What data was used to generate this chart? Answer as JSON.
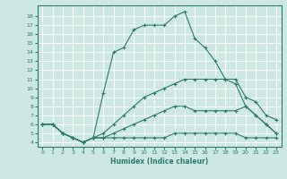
{
  "xlabel": "Humidex (Indice chaleur)",
  "ylabel": "",
  "bg_color": "#cde8e2",
  "grid_color": "#ffffff",
  "line_color": "#2d7a6e",
  "xlim": [
    -0.5,
    23.5
  ],
  "ylim": [
    3.5,
    19.2
  ],
  "xticks": [
    0,
    1,
    2,
    3,
    4,
    5,
    6,
    7,
    8,
    9,
    10,
    11,
    12,
    13,
    14,
    15,
    16,
    17,
    18,
    19,
    20,
    21,
    22,
    23
  ],
  "yticks": [
    4,
    5,
    6,
    7,
    8,
    9,
    10,
    11,
    12,
    13,
    14,
    15,
    16,
    17,
    18
  ],
  "lines": [
    {
      "x": [
        0,
        1,
        2,
        3,
        4,
        5,
        6,
        7,
        8,
        9,
        10,
        11,
        12,
        13,
        14,
        15,
        16,
        17,
        18,
        19,
        20,
        21,
        22,
        23
      ],
      "y": [
        6,
        6,
        5,
        4.5,
        4,
        4.5,
        9.5,
        14,
        14.5,
        16.5,
        17,
        17,
        17,
        18,
        18.5,
        15.5,
        14.5,
        13,
        11,
        10.5,
        8,
        7,
        6,
        5
      ]
    },
    {
      "x": [
        0,
        1,
        2,
        3,
        4,
        5,
        6,
        7,
        8,
        9,
        10,
        11,
        12,
        13,
        14,
        15,
        16,
        17,
        18,
        19,
        20,
        21,
        22,
        23
      ],
      "y": [
        6,
        6,
        5,
        4.5,
        4,
        4.5,
        5,
        6,
        7,
        8,
        9,
        9.5,
        10,
        10.5,
        11,
        11,
        11,
        11,
        11,
        11,
        9,
        8.5,
        7,
        6.5
      ]
    },
    {
      "x": [
        0,
        1,
        2,
        3,
        4,
        5,
        6,
        7,
        8,
        9,
        10,
        11,
        12,
        13,
        14,
        15,
        16,
        17,
        18,
        19,
        20,
        21,
        22,
        23
      ],
      "y": [
        6,
        6,
        5,
        4.5,
        4,
        4.5,
        4.5,
        5,
        5.5,
        6,
        6.5,
        7,
        7.5,
        8,
        8,
        7.5,
        7.5,
        7.5,
        7.5,
        7.5,
        8,
        7,
        6,
        5
      ]
    },
    {
      "x": [
        0,
        1,
        2,
        3,
        4,
        5,
        6,
        7,
        8,
        9,
        10,
        11,
        12,
        13,
        14,
        15,
        16,
        17,
        18,
        19,
        20,
        21,
        22,
        23
      ],
      "y": [
        6,
        6,
        5,
        4.5,
        4,
        4.5,
        4.5,
        4.5,
        4.5,
        4.5,
        4.5,
        4.5,
        4.5,
        5,
        5,
        5,
        5,
        5,
        5,
        5,
        4.5,
        4.5,
        4.5,
        4.5
      ]
    }
  ]
}
